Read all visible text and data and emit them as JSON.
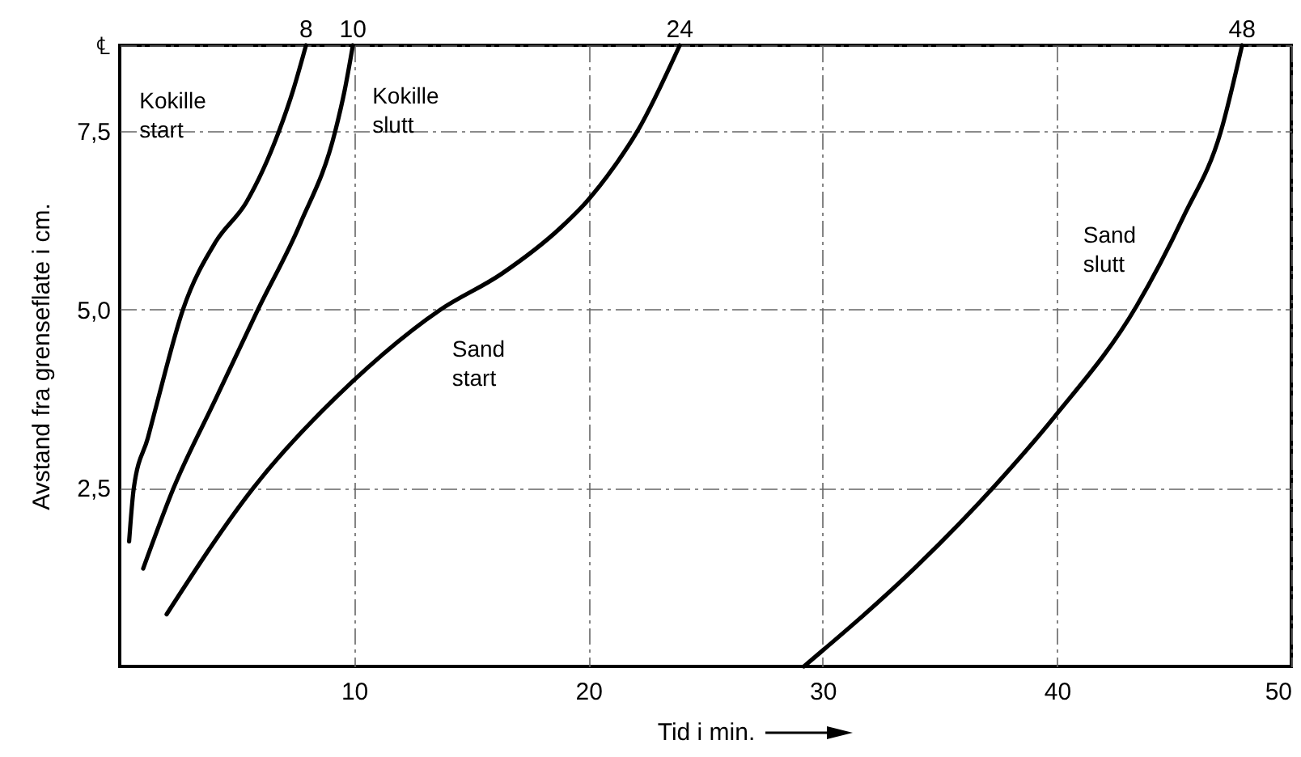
{
  "chart_data": {
    "type": "line",
    "xlabel": "Tid i min.",
    "ylabel": "Avstand fra grenseflate i cm.",
    "xlim": [
      0,
      50
    ],
    "ylim": [
      0,
      8.7
    ],
    "xticks": [
      10,
      20,
      30,
      40,
      50
    ],
    "yticks": [
      {
        "value": 2.5,
        "label": "2,5"
      },
      {
        "value": 5.0,
        "label": "5,0"
      },
      {
        "value": 7.5,
        "label": "7,5"
      },
      {
        "value": 8.7,
        "label": "℄"
      }
    ],
    "grid": true,
    "line_style": "solid",
    "marker": "none",
    "series": [
      {
        "name": "Kokille start",
        "color": "#000000",
        "x": [
          0.4,
          0.6,
          1.2,
          1.6,
          2.7,
          4.1,
          5.4,
          6.8,
          7.4,
          7.95
        ],
        "values": [
          1.75,
          2.5,
          3.2,
          3.7,
          5.0,
          5.95,
          6.5,
          7.5,
          8.07,
          8.7
        ]
      },
      {
        "name": "Kokille slutt",
        "color": "#000000",
        "x": [
          1.0,
          2.3,
          4.1,
          5.9,
          7.7,
          9.2,
          9.6,
          9.95
        ],
        "values": [
          1.37,
          2.5,
          3.75,
          5.0,
          6.2,
          7.5,
          8.07,
          8.7
        ]
      },
      {
        "name": "Sand start",
        "color": "#000000",
        "x": [
          2.0,
          5.7,
          9.9,
          13.7,
          16.3,
          18.8,
          19.9,
          21.1,
          22.1,
          23.9
        ],
        "values": [
          0.73,
          2.5,
          3.98,
          5.0,
          5.5,
          6.14,
          6.5,
          7.0,
          7.5,
          8.7
        ]
      },
      {
        "name": "Sand slutt",
        "color": "#000000",
        "x": [
          29.2,
          34.0,
          37.4,
          39.9,
          43.4,
          45.4,
          47.0,
          47.9
        ],
        "values": [
          0.0,
          1.4,
          2.55,
          3.5,
          5.05,
          6.3,
          7.5,
          8.7
        ]
      }
    ],
    "annotations": [
      {
        "text": "8",
        "x": 7.95,
        "y": 8.7
      },
      {
        "text": "10",
        "x": 9.95,
        "y": 8.7
      },
      {
        "text": "24",
        "x": 23.9,
        "y": 8.7
      },
      {
        "text": "48",
        "x": 47.9,
        "y": 8.7
      }
    ]
  }
}
